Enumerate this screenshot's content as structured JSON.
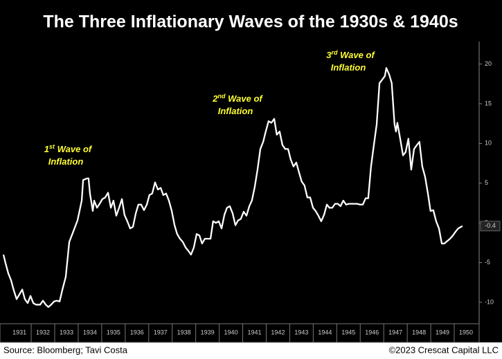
{
  "chart_data": {
    "type": "line",
    "title": "The Three Inflationary Waves of the 1930s & 1940s",
    "source": "Source: Bloomberg; Tavi Costa",
    "credit": "©2023 Crescat Capital LLC",
    "annotations": [
      {
        "num": "1",
        "sup": "st",
        "rest": " Wave of",
        "line2": "Inflation"
      },
      {
        "num": "2",
        "sup": "nd",
        "rest": " Wave of",
        "line2": "Inflation"
      },
      {
        "num": "3",
        "sup": "rd",
        "rest": " Wave of",
        "line2": "Inflation"
      }
    ],
    "color": "#ffffff",
    "last_value": -0.4,
    "xlim": [
      1930.82,
      1951.06
    ],
    "xticks": [
      {
        "value": 1931.5,
        "label": "1931"
      },
      {
        "value": 1932.5,
        "label": "1932"
      },
      {
        "value": 1933.5,
        "label": "1933"
      },
      {
        "value": 1934.5,
        "label": "1934"
      },
      {
        "value": 1935.5,
        "label": "1935"
      },
      {
        "value": 1936.5,
        "label": "1936"
      },
      {
        "value": 1937.5,
        "label": "1937"
      },
      {
        "value": 1938.5,
        "label": "1938"
      },
      {
        "value": 1939.5,
        "label": "1939"
      },
      {
        "value": 1940.5,
        "label": "1940"
      },
      {
        "value": 1941.5,
        "label": "1941"
      },
      {
        "value": 1942.5,
        "label": "1942"
      },
      {
        "value": 1943.5,
        "label": "1943"
      },
      {
        "value": 1944.5,
        "label": "1944"
      },
      {
        "value": 1945.5,
        "label": "1945"
      },
      {
        "value": 1946.5,
        "label": "1946"
      },
      {
        "value": 1947.5,
        "label": "1947"
      },
      {
        "value": 1948.5,
        "label": "1948"
      },
      {
        "value": 1949.5,
        "label": "1949"
      },
      {
        "value": 1950.5,
        "label": "1950"
      }
    ],
    "ylim": [
      -12.7,
      22.4
    ],
    "yticks": [
      -10,
      -5,
      0,
      5,
      10,
      15,
      20
    ],
    "x": [
      1930.82,
      1930.91,
      1931.03,
      1931.14,
      1931.26,
      1931.38,
      1931.5,
      1931.62,
      1931.73,
      1931.85,
      1931.97,
      1932.09,
      1932.2,
      1932.38,
      1932.5,
      1932.62,
      1932.73,
      1932.85,
      1932.97,
      1933.09,
      1933.21,
      1933.32,
      1933.47,
      1933.62,
      1933.79,
      1933.97,
      1934.15,
      1934.21,
      1934.38,
      1934.44,
      1934.5,
      1934.62,
      1934.68,
      1934.8,
      1934.91,
      1935.03,
      1935.15,
      1935.27,
      1935.39,
      1935.5,
      1935.62,
      1935.74,
      1935.86,
      1935.97,
      1936.09,
      1936.21,
      1936.33,
      1936.45,
      1936.56,
      1936.68,
      1936.8,
      1936.92,
      1937.03,
      1937.15,
      1937.27,
      1937.39,
      1937.51,
      1937.62,
      1937.74,
      1937.86,
      1937.98,
      1938.1,
      1938.21,
      1938.33,
      1938.45,
      1938.57,
      1938.68,
      1938.8,
      1938.92,
      1939.04,
      1939.16,
      1939.27,
      1939.39,
      1939.51,
      1939.63,
      1939.74,
      1939.86,
      1939.98,
      1940.1,
      1940.22,
      1940.33,
      1940.45,
      1940.57,
      1940.69,
      1940.8,
      1940.92,
      1941.04,
      1941.16,
      1941.28,
      1941.39,
      1941.51,
      1941.63,
      1941.75,
      1941.87,
      1941.98,
      1942.1,
      1942.22,
      1942.34,
      1942.45,
      1942.57,
      1942.69,
      1942.81,
      1942.93,
      1943.04,
      1943.16,
      1943.28,
      1943.4,
      1943.51,
      1943.63,
      1943.75,
      1943.87,
      1943.99,
      1944.1,
      1944.22,
      1944.34,
      1944.46,
      1944.58,
      1944.69,
      1944.81,
      1944.93,
      1945.05,
      1945.16,
      1945.28,
      1945.4,
      1945.52,
      1945.64,
      1945.75,
      1945.87,
      1945.99,
      1946.11,
      1946.23,
      1946.34,
      1946.46,
      1946.58,
      1946.7,
      1946.82,
      1946.93,
      1947.05,
      1947.11,
      1947.23,
      1947.34,
      1947.46,
      1947.52,
      1947.58,
      1947.7,
      1947.82,
      1947.93,
      1948.05,
      1948.17,
      1948.29,
      1948.41,
      1948.52,
      1948.64,
      1948.76,
      1948.88,
      1948.99,
      1949.11,
      1949.23,
      1949.35,
      1949.47,
      1949.58,
      1949.7,
      1949.82,
      1949.94,
      1950.06,
      1950.17,
      1950.35
    ],
    "values": [
      -4.0,
      -5.1,
      -6.4,
      -7.2,
      -8.5,
      -9.6,
      -9.0,
      -8.4,
      -9.6,
      -10.1,
      -9.2,
      -10.1,
      -10.3,
      -10.3,
      -9.8,
      -10.3,
      -10.6,
      -10.3,
      -9.9,
      -9.8,
      -9.9,
      -8.5,
      -6.8,
      -2.4,
      -1.1,
      0.3,
      2.8,
      5.4,
      5.6,
      5.6,
      3.7,
      1.5,
      2.8,
      1.9,
      2.4,
      3.0,
      3.2,
      3.8,
      1.9,
      2.8,
      0.9,
      1.9,
      3.0,
      1.0,
      0.2,
      -0.7,
      -0.5,
      1.2,
      2.3,
      2.3,
      1.6,
      2.3,
      3.5,
      3.7,
      5.1,
      4.2,
      4.4,
      3.5,
      3.7,
      2.8,
      1.5,
      -0.3,
      -1.4,
      -2.0,
      -2.4,
      -3.1,
      -3.5,
      -4.0,
      -3.1,
      -1.4,
      -1.6,
      -2.6,
      -2.0,
      -2.0,
      -2.0,
      0.2,
      0.0,
      0.2,
      -0.7,
      1.0,
      1.9,
      2.1,
      1.2,
      -0.3,
      0.3,
      0.5,
      1.4,
      0.9,
      2.1,
      2.8,
      4.5,
      6.7,
      9.3,
      10.2,
      11.5,
      12.8,
      12.6,
      13.1,
      11.1,
      11.5,
      9.8,
      9.3,
      9.3,
      8.0,
      7.1,
      7.6,
      6.3,
      5.2,
      4.7,
      3.2,
      3.2,
      1.9,
      1.5,
      0.9,
      0.2,
      1.0,
      2.3,
      1.9,
      1.9,
      2.4,
      2.4,
      2.1,
      2.8,
      2.3,
      2.4,
      2.4,
      2.4,
      2.4,
      2.3,
      2.3,
      3.1,
      3.1,
      7.1,
      9.8,
      12.4,
      17.6,
      18.0,
      18.5,
      19.5,
      18.7,
      17.6,
      12.4,
      11.5,
      12.6,
      10.6,
      8.5,
      8.9,
      10.6,
      6.7,
      9.3,
      9.8,
      10.2,
      7.1,
      5.8,
      3.7,
      1.5,
      1.6,
      0.2,
      -0.7,
      -2.6,
      -2.6,
      -2.3,
      -2.0,
      -1.6,
      -1.1,
      -0.7,
      -0.4
    ]
  }
}
